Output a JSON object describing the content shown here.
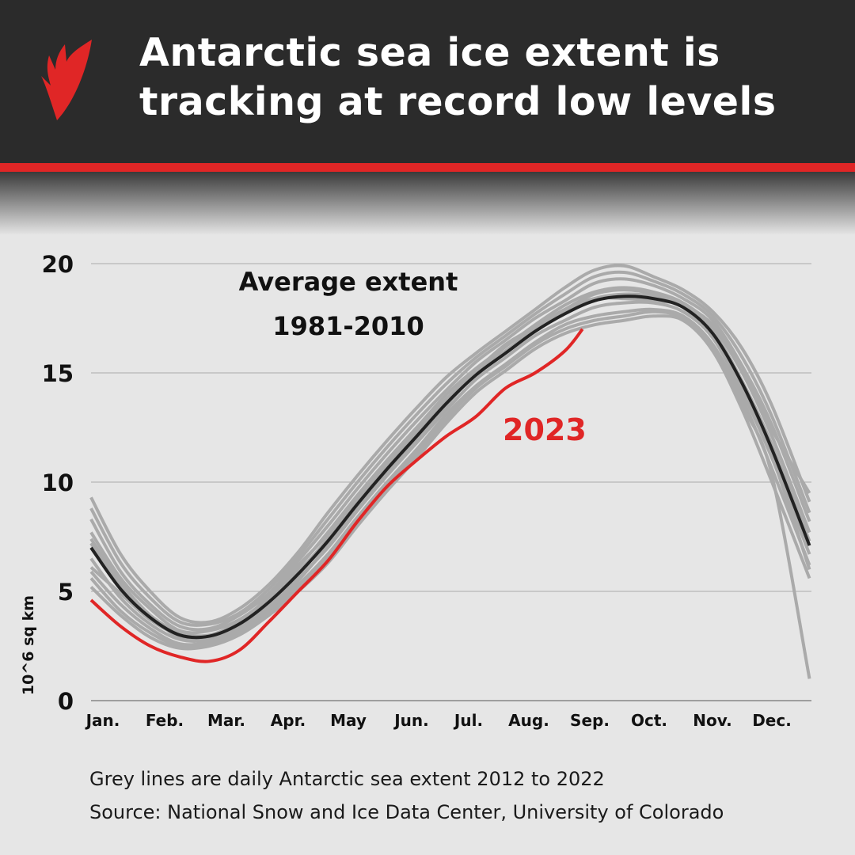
{
  "header": {
    "title_line1": "Antarctic sea ice extent is",
    "title_line2": "tracking at record low levels",
    "logo": "SBS"
  },
  "colors": {
    "header_bg": "#2b2b2b",
    "accent_red": "#e02626",
    "grey_lines": "#aaaaaa",
    "average_line": "#222222",
    "series_2023": "#e02626"
  },
  "chart_data": {
    "type": "line",
    "ylabel": "10^6 sq km",
    "ylim": [
      0,
      20
    ],
    "yticks": [
      "0",
      "5",
      "10",
      "15",
      "20"
    ],
    "xticks": [
      "Jan.",
      "Feb.",
      "Mar.",
      "Apr.",
      "May",
      "Jun.",
      "Jul.",
      "Aug.",
      "Sep.",
      "Oct.",
      "Nov.",
      "Dec."
    ],
    "grid": true,
    "x_day_of_year": [
      0,
      15,
      30,
      45,
      60,
      75,
      90,
      105,
      120,
      135,
      150,
      165,
      180,
      195,
      210,
      225,
      240,
      255,
      270,
      285,
      300,
      315,
      330,
      345,
      364
    ],
    "annotations": {
      "average_line1": "Average extent",
      "average_line2": "1981-2010",
      "label_2023": "2023"
    },
    "average": [
      7.0,
      5.1,
      3.8,
      3.0,
      2.95,
      3.5,
      4.5,
      5.8,
      7.3,
      9.0,
      10.6,
      12.1,
      13.6,
      14.9,
      15.9,
      16.9,
      17.7,
      18.3,
      18.5,
      18.4,
      18.0,
      16.8,
      14.5,
      11.5,
      7.1
    ],
    "series_2023": {
      "x_day_of_year": [
        0,
        15,
        30,
        45,
        60,
        75,
        90,
        105,
        120,
        135,
        150,
        165,
        180,
        195,
        210,
        225,
        240,
        249
      ],
      "values": [
        4.6,
        3.4,
        2.5,
        2.0,
        1.8,
        2.3,
        3.6,
        5.0,
        6.4,
        8.2,
        9.8,
        11.0,
        12.1,
        13.0,
        14.3,
        15.0,
        16.0,
        17.0
      ]
    },
    "grey_series": [
      [
        5.2,
        3.9,
        2.9,
        2.4,
        2.5,
        3.0,
        3.9,
        5.0,
        6.3,
        8.0,
        9.6,
        11.1,
        12.7,
        14.1,
        15.1,
        16.1,
        16.8,
        17.2,
        17.4,
        17.6,
        17.4,
        16.0,
        13.3,
        10.0,
        5.6
      ],
      [
        5.9,
        4.4,
        3.3,
        2.6,
        2.7,
        3.2,
        4.1,
        5.3,
        6.7,
        8.4,
        10.0,
        11.5,
        13.1,
        14.4,
        15.4,
        16.4,
        17.2,
        17.6,
        17.8,
        17.9,
        17.6,
        16.3,
        13.8,
        10.6,
        6.2
      ],
      [
        6.5,
        4.7,
        3.5,
        2.8,
        2.8,
        3.4,
        4.3,
        5.6,
        7.0,
        8.7,
        10.3,
        11.8,
        13.3,
        14.7,
        15.7,
        16.7,
        17.4,
        18.0,
        18.2,
        18.2,
        17.8,
        16.6,
        14.1,
        11.1,
        6.7
      ],
      [
        7.2,
        5.2,
        3.9,
        3.1,
        3.0,
        3.6,
        4.6,
        5.9,
        7.4,
        9.1,
        10.7,
        12.2,
        13.7,
        15.0,
        16.0,
        17.0,
        17.8,
        18.4,
        18.6,
        18.5,
        18.1,
        16.9,
        14.6,
        11.7,
        7.3
      ],
      [
        7.7,
        5.6,
        4.2,
        3.2,
        3.2,
        3.7,
        4.7,
        6.1,
        7.7,
        9.4,
        11.0,
        12.5,
        14.0,
        15.2,
        16.2,
        17.2,
        18.1,
        18.7,
        18.9,
        18.7,
        18.2,
        17.1,
        15.0,
        12.1,
        7.7
      ],
      [
        8.3,
        5.9,
        4.4,
        3.4,
        3.3,
        3.9,
        4.9,
        6.4,
        8.0,
        9.7,
        11.3,
        12.8,
        14.2,
        15.5,
        16.5,
        17.5,
        18.3,
        19.1,
        19.3,
        19.0,
        18.4,
        17.4,
        15.3,
        12.6,
        8.2
      ],
      [
        8.8,
        6.3,
        4.7,
        3.6,
        3.5,
        4.0,
        5.1,
        6.6,
        8.3,
        10.0,
        11.6,
        13.1,
        14.5,
        15.7,
        16.7,
        17.7,
        18.6,
        19.4,
        19.6,
        19.2,
        18.6,
        17.6,
        15.7,
        13.0,
        8.6
      ],
      [
        9.3,
        6.7,
        5.0,
        3.8,
        3.6,
        4.2,
        5.3,
        6.8,
        8.6,
        10.3,
        11.9,
        13.4,
        14.8,
        15.9,
        16.9,
        17.9,
        18.9,
        19.7,
        19.9,
        19.4,
        18.8,
        17.8,
        16.1,
        13.5,
        9.1
      ],
      [
        5.6,
        4.1,
        3.1,
        2.5,
        2.6,
        3.1,
        4.0,
        5.2,
        6.5,
        8.2,
        9.8,
        11.3,
        12.9,
        14.3,
        15.3,
        16.3,
        17.0,
        17.4,
        17.6,
        17.8,
        17.5,
        16.1,
        13.5,
        10.3,
        1.0
      ],
      [
        7.4,
        5.4,
        3.9,
        2.9,
        2.9,
        3.5,
        4.8,
        6.2,
        7.6,
        9.2,
        10.8,
        12.4,
        13.8,
        15.1,
        16.3,
        17.1,
        17.9,
        18.6,
        18.8,
        18.6,
        18.0,
        16.7,
        14.2,
        11.2,
        6.0
      ],
      [
        6.1,
        4.9,
        3.7,
        3.0,
        2.9,
        3.3,
        4.2,
        5.5,
        7.1,
        8.9,
        10.4,
        11.9,
        13.5,
        15.0,
        16.2,
        17.1,
        17.9,
        18.4,
        18.4,
        18.3,
        18.1,
        17.2,
        15.3,
        12.4,
        9.5
      ]
    ]
  },
  "footer": {
    "note": "Grey lines are daily Antarctic sea extent 2012 to 2022",
    "source": "Source: National Snow and Ice Data Center, University of Colorado"
  }
}
